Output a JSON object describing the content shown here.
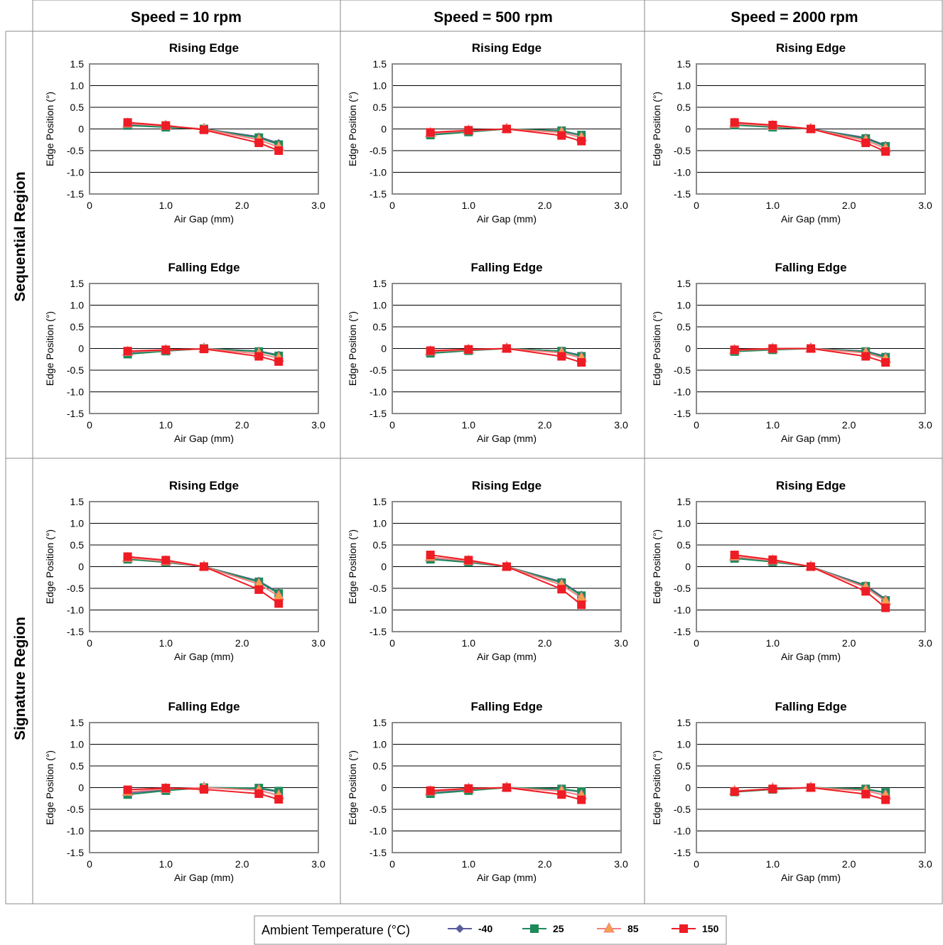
{
  "columns": [
    "Speed = 10 rpm",
    "Speed = 500 rpm",
    "Speed = 2000 rpm"
  ],
  "rows": [
    "Sequential Region",
    "Signature Region"
  ],
  "legend": {
    "title": "Ambient Temperature (°C)",
    "items": [
      {
        "label": "-40",
        "color": "#5b5b9b",
        "marker": "diamond"
      },
      {
        "label": "25",
        "color": "#1e8a5a",
        "marker": "square"
      },
      {
        "label": "85",
        "color": "#f08080",
        "marker": "triangle"
      },
      {
        "label": "150",
        "color": "#ee1c24",
        "marker": "square"
      }
    ]
  },
  "colors": {
    "frame": "#8a8a8a",
    "grid": "#000000",
    "triangle_fill": "#f5a04a"
  },
  "chart_data": [
    {
      "region": "Sequential Region",
      "speed": "Speed = 10 rpm",
      "type": "line",
      "title": "Rising Edge",
      "xlabel": "Air Gap (mm)",
      "ylabel": "Edge Position (°)",
      "xlim": [
        0,
        3.0
      ],
      "ylim": [
        -1.5,
        1.5
      ],
      "x_ticks": [
        "0",
        "1.0",
        "2.0",
        "3.0"
      ],
      "y_ticks": [
        "1.5",
        "1.0",
        "0.5",
        "0",
        "-0.5",
        "-1.0",
        "-1.5"
      ],
      "x": [
        0.5,
        1.0,
        1.5,
        2.22,
        2.48
      ],
      "series": [
        {
          "name": "-40",
          "values": [
            0.1,
            0.05,
            0,
            -0.18,
            -0.33
          ]
        },
        {
          "name": "25",
          "values": [
            0.08,
            0.04,
            0,
            -0.2,
            -0.36
          ]
        },
        {
          "name": "85",
          "values": [
            0.12,
            0.07,
            0,
            -0.25,
            -0.42
          ]
        },
        {
          "name": "150",
          "values": [
            0.15,
            0.08,
            -0.02,
            -0.32,
            -0.5
          ]
        }
      ]
    },
    {
      "region": "Sequential Region",
      "speed": "Speed = 500 rpm",
      "type": "line",
      "title": "Rising Edge",
      "xlabel": "Air Gap (mm)",
      "ylabel": "Edge Position (°)",
      "xlim": [
        0,
        3.0
      ],
      "ylim": [
        -1.5,
        1.5
      ],
      "x_ticks": [
        "0",
        "1.0",
        "2.0",
        "3.0"
      ],
      "y_ticks": [
        "1.5",
        "1.0",
        "0.5",
        "0",
        "-0.5",
        "-1.0",
        "-1.5"
      ],
      "x": [
        0.5,
        1.0,
        1.5,
        2.22,
        2.48
      ],
      "series": [
        {
          "name": "-40",
          "values": [
            -0.12,
            -0.06,
            0,
            -0.05,
            -0.15
          ]
        },
        {
          "name": "25",
          "values": [
            -0.14,
            -0.07,
            0,
            -0.04,
            -0.14
          ]
        },
        {
          "name": "85",
          "values": [
            -0.1,
            -0.04,
            0,
            -0.08,
            -0.2
          ]
        },
        {
          "name": "150",
          "values": [
            -0.08,
            -0.03,
            0,
            -0.15,
            -0.28
          ]
        }
      ]
    },
    {
      "region": "Sequential Region",
      "speed": "Speed = 2000 rpm",
      "type": "line",
      "title": "Rising Edge",
      "xlabel": "Air Gap (mm)",
      "ylabel": "Edge Position (°)",
      "xlim": [
        0,
        3.0
      ],
      "ylim": [
        -1.5,
        1.5
      ],
      "x_ticks": [
        "0",
        "1.0",
        "2.0",
        "3.0"
      ],
      "y_ticks": [
        "1.5",
        "1.0",
        "0.5",
        "0",
        "-0.5",
        "-1.0",
        "-1.5"
      ],
      "x": [
        0.5,
        1.0,
        1.5,
        2.22,
        2.48
      ],
      "series": [
        {
          "name": "-40",
          "values": [
            0.1,
            0.05,
            0,
            -0.2,
            -0.38
          ]
        },
        {
          "name": "25",
          "values": [
            0.09,
            0.04,
            0,
            -0.22,
            -0.4
          ]
        },
        {
          "name": "85",
          "values": [
            0.12,
            0.07,
            0,
            -0.26,
            -0.45
          ]
        },
        {
          "name": "150",
          "values": [
            0.15,
            0.09,
            0,
            -0.32,
            -0.52
          ]
        }
      ]
    },
    {
      "region": "Sequential Region",
      "speed": "Speed = 10 rpm",
      "type": "line",
      "title": "Falling Edge",
      "xlabel": "Air Gap (mm)",
      "ylabel": "Edge Position (°)",
      "xlim": [
        0,
        3.0
      ],
      "ylim": [
        -1.5,
        1.5
      ],
      "x_ticks": [
        "0",
        "1.0",
        "2.0",
        "3.0"
      ],
      "y_ticks": [
        "1.5",
        "1.0",
        "0.5",
        "0",
        "-0.5",
        "-1.0",
        "-1.5"
      ],
      "x": [
        0.5,
        1.0,
        1.5,
        2.22,
        2.48
      ],
      "series": [
        {
          "name": "-40",
          "values": [
            -0.1,
            -0.05,
            0,
            -0.06,
            -0.15
          ]
        },
        {
          "name": "25",
          "values": [
            -0.13,
            -0.06,
            0,
            -0.07,
            -0.17
          ]
        },
        {
          "name": "85",
          "values": [
            -0.08,
            -0.04,
            0,
            -0.12,
            -0.22
          ]
        },
        {
          "name": "150",
          "values": [
            -0.06,
            -0.03,
            -0.01,
            -0.18,
            -0.3
          ]
        }
      ]
    },
    {
      "region": "Sequential Region",
      "speed": "Speed = 500 rpm",
      "type": "line",
      "title": "Falling Edge",
      "xlabel": "Air Gap (mm)",
      "ylabel": "Edge Position (°)",
      "xlim": [
        0,
        3.0
      ],
      "ylim": [
        -1.5,
        1.5
      ],
      "x_ticks": [
        "0",
        "1.0",
        "2.0",
        "3.0"
      ],
      "y_ticks": [
        "1.5",
        "1.0",
        "0.5",
        "0",
        "-0.5",
        "-1.0",
        "-1.5"
      ],
      "x": [
        0.5,
        1.0,
        1.5,
        2.22,
        2.48
      ],
      "series": [
        {
          "name": "-40",
          "values": [
            -0.08,
            -0.04,
            0,
            -0.06,
            -0.16
          ]
        },
        {
          "name": "25",
          "values": [
            -0.11,
            -0.05,
            0,
            -0.06,
            -0.18
          ]
        },
        {
          "name": "85",
          "values": [
            -0.07,
            -0.03,
            0,
            -0.1,
            -0.22
          ]
        },
        {
          "name": "150",
          "values": [
            -0.05,
            -0.02,
            0,
            -0.18,
            -0.32
          ]
        }
      ]
    },
    {
      "region": "Sequential Region",
      "speed": "Speed = 2000 rpm",
      "type": "line",
      "title": "Falling Edge",
      "xlabel": "Air Gap (mm)",
      "ylabel": "Edge Position (°)",
      "xlim": [
        0,
        3.0
      ],
      "ylim": [
        -1.5,
        1.5
      ],
      "x_ticks": [
        "0",
        "1.0",
        "2.0",
        "3.0"
      ],
      "y_ticks": [
        "1.5",
        "1.0",
        "0.5",
        "0",
        "-0.5",
        "-1.0",
        "-1.5"
      ],
      "x": [
        0.5,
        1.0,
        1.5,
        2.22,
        2.48
      ],
      "series": [
        {
          "name": "-40",
          "values": [
            -0.05,
            -0.02,
            0,
            -0.06,
            -0.18
          ]
        },
        {
          "name": "25",
          "values": [
            -0.07,
            -0.03,
            0,
            -0.07,
            -0.2
          ]
        },
        {
          "name": "85",
          "values": [
            -0.04,
            -0.01,
            0,
            -0.1,
            -0.24
          ]
        },
        {
          "name": "150",
          "values": [
            -0.03,
            0,
            0,
            -0.18,
            -0.32
          ]
        }
      ]
    },
    {
      "region": "Signature Region",
      "speed": "Speed = 10 rpm",
      "type": "line",
      "title": "Rising Edge",
      "xlabel": "Air Gap (mm)",
      "ylabel": "Edge Position (°)",
      "xlim": [
        0,
        3.0
      ],
      "ylim": [
        -1.5,
        1.5
      ],
      "x_ticks": [
        "0",
        "1.0",
        "2.0",
        "3.0"
      ],
      "y_ticks": [
        "1.5",
        "1.0",
        "0.5",
        "0",
        "-0.5",
        "-1.0",
        "-1.5"
      ],
      "x": [
        0.5,
        1.0,
        1.5,
        2.22,
        2.48
      ],
      "series": [
        {
          "name": "-40",
          "values": [
            0.18,
            0.1,
            0,
            -0.33,
            -0.6
          ]
        },
        {
          "name": "25",
          "values": [
            0.17,
            0.1,
            0,
            -0.35,
            -0.62
          ]
        },
        {
          "name": "85",
          "values": [
            0.2,
            0.12,
            0,
            -0.4,
            -0.68
          ]
        },
        {
          "name": "150",
          "values": [
            0.23,
            0.15,
            0,
            -0.53,
            -0.85
          ]
        }
      ]
    },
    {
      "region": "Signature Region",
      "speed": "Speed = 500 rpm",
      "type": "line",
      "title": "Rising Edge",
      "xlabel": "Air Gap (mm)",
      "ylabel": "Edge Position (°)",
      "xlim": [
        0,
        3.0
      ],
      "ylim": [
        -1.5,
        1.5
      ],
      "x_ticks": [
        "0",
        "1.0",
        "2.0",
        "3.0"
      ],
      "y_ticks": [
        "1.5",
        "1.0",
        "0.5",
        "0",
        "-0.5",
        "-1.0",
        "-1.5"
      ],
      "x": [
        0.5,
        1.0,
        1.5,
        2.22,
        2.48
      ],
      "series": [
        {
          "name": "-40",
          "values": [
            0.18,
            0.1,
            0,
            -0.35,
            -0.65
          ]
        },
        {
          "name": "25",
          "values": [
            0.17,
            0.1,
            0,
            -0.37,
            -0.67
          ]
        },
        {
          "name": "85",
          "values": [
            0.22,
            0.13,
            0,
            -0.42,
            -0.72
          ]
        },
        {
          "name": "150",
          "values": [
            0.27,
            0.15,
            0,
            -0.52,
            -0.88
          ]
        }
      ]
    },
    {
      "region": "Signature Region",
      "speed": "Speed = 2000 rpm",
      "type": "line",
      "title": "Rising Edge",
      "xlabel": "Air Gap (mm)",
      "ylabel": "Edge Position (°)",
      "xlim": [
        0,
        3.0
      ],
      "ylim": [
        -1.5,
        1.5
      ],
      "x_ticks": [
        "0",
        "1.0",
        "2.0",
        "3.0"
      ],
      "y_ticks": [
        "1.5",
        "1.0",
        "0.5",
        "0",
        "-0.5",
        "-1.0",
        "-1.5"
      ],
      "x": [
        0.5,
        1.0,
        1.5,
        2.22,
        2.48
      ],
      "series": [
        {
          "name": "-40",
          "values": [
            0.2,
            0.12,
            0,
            -0.43,
            -0.75
          ]
        },
        {
          "name": "25",
          "values": [
            0.19,
            0.11,
            0,
            -0.45,
            -0.78
          ]
        },
        {
          "name": "85",
          "values": [
            0.23,
            0.14,
            0,
            -0.48,
            -0.8
          ]
        },
        {
          "name": "150",
          "values": [
            0.27,
            0.16,
            0,
            -0.57,
            -0.95
          ]
        }
      ]
    },
    {
      "region": "Signature Region",
      "speed": "Speed = 10 rpm",
      "type": "line",
      "title": "Falling Edge",
      "xlabel": "Air Gap (mm)",
      "ylabel": "Edge Position (°)",
      "xlim": [
        0,
        3.0
      ],
      "ylim": [
        -1.5,
        1.5
      ],
      "x_ticks": [
        "0",
        "1.0",
        "2.0",
        "3.0"
      ],
      "y_ticks": [
        "1.5",
        "1.0",
        "0.5",
        "0",
        "-0.5",
        "-1.0",
        "-1.5"
      ],
      "x": [
        0.5,
        1.0,
        1.5,
        2.22,
        2.48
      ],
      "series": [
        {
          "name": "-40",
          "values": [
            -0.12,
            -0.05,
            0,
            -0.02,
            -0.1
          ]
        },
        {
          "name": "25",
          "values": [
            -0.16,
            -0.07,
            0,
            -0.01,
            -0.08
          ]
        },
        {
          "name": "85",
          "values": [
            -0.1,
            -0.03,
            0,
            -0.06,
            -0.18
          ]
        },
        {
          "name": "150",
          "values": [
            -0.05,
            -0.01,
            -0.04,
            -0.14,
            -0.27
          ]
        }
      ]
    },
    {
      "region": "Signature Region",
      "speed": "Speed = 500 rpm",
      "type": "line",
      "title": "Falling Edge",
      "xlabel": "Air Gap (mm)",
      "ylabel": "Edge Position (°)",
      "xlim": [
        0,
        3.0
      ],
      "ylim": [
        -1.5,
        1.5
      ],
      "x_ticks": [
        "0",
        "1.0",
        "2.0",
        "3.0"
      ],
      "y_ticks": [
        "1.5",
        "1.0",
        "0.5",
        "0",
        "-0.5",
        "-1.0",
        "-1.5"
      ],
      "x": [
        0.5,
        1.0,
        1.5,
        2.22,
        2.48
      ],
      "series": [
        {
          "name": "-40",
          "values": [
            -0.1,
            -0.05,
            0,
            -0.04,
            -0.1
          ]
        },
        {
          "name": "25",
          "values": [
            -0.14,
            -0.07,
            0,
            -0.03,
            -0.09
          ]
        },
        {
          "name": "85",
          "values": [
            -0.09,
            -0.03,
            0,
            -0.08,
            -0.18
          ]
        },
        {
          "name": "150",
          "values": [
            -0.07,
            -0.02,
            0,
            -0.16,
            -0.28
          ]
        }
      ]
    },
    {
      "region": "Signature Region",
      "speed": "Speed = 2000 rpm",
      "type": "line",
      "title": "Falling Edge",
      "xlabel": "Air Gap (mm)",
      "ylabel": "Edge Position (°)",
      "xlim": [
        0,
        3.0
      ],
      "ylim": [
        -1.5,
        1.5
      ],
      "x_ticks": [
        "0",
        "1.0",
        "2.0",
        "3.0"
      ],
      "y_ticks": [
        "1.5",
        "1.0",
        "0.5",
        "0",
        "-0.5",
        "-1.0",
        "-1.5"
      ],
      "x": [
        0.5,
        1.0,
        1.5,
        2.22,
        2.48
      ],
      "series": [
        {
          "name": "-40",
          "values": [
            -0.08,
            -0.03,
            0,
            -0.04,
            -0.12
          ]
        },
        {
          "name": "25",
          "values": [
            -0.1,
            -0.04,
            0,
            -0.03,
            -0.11
          ]
        },
        {
          "name": "85",
          "values": [
            -0.08,
            -0.02,
            0,
            -0.07,
            -0.18
          ]
        },
        {
          "name": "150",
          "values": [
            -0.09,
            -0.03,
            0,
            -0.15,
            -0.28
          ]
        }
      ]
    }
  ]
}
